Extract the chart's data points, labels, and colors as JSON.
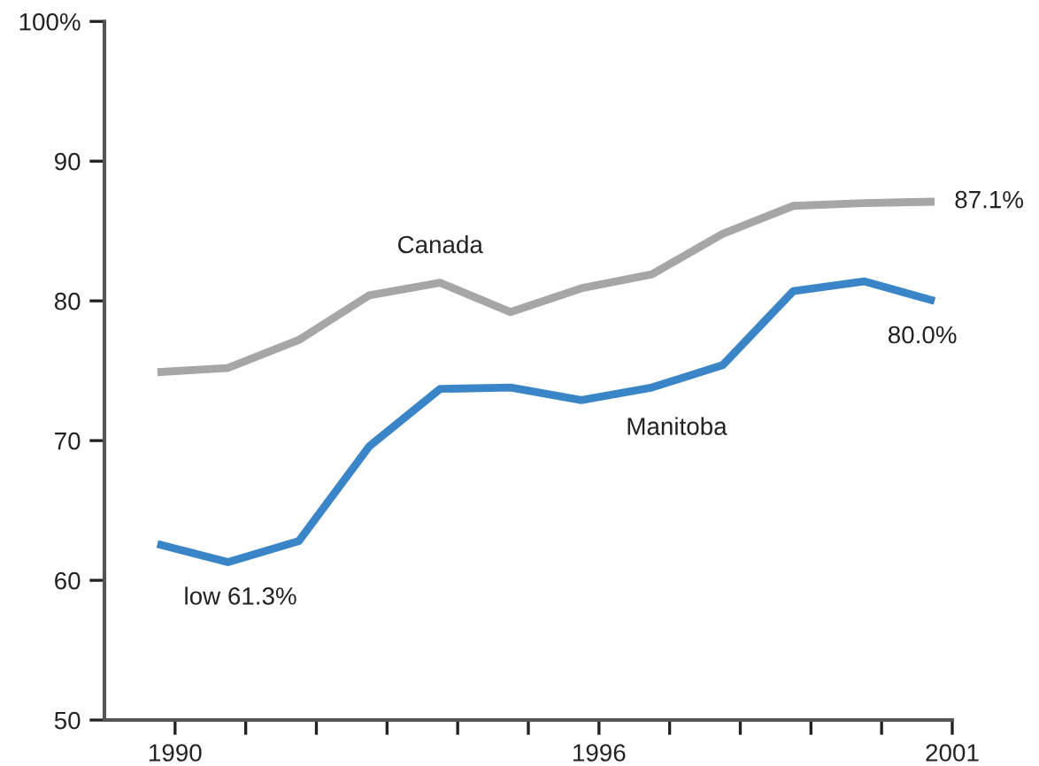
{
  "chart_data": {
    "type": "line",
    "x": [
      1989.75,
      1990.75,
      1991.75,
      1992.75,
      1993.75,
      1994.75,
      1995.75,
      1996.75,
      1997.75,
      1998.75,
      1999.75,
      2000.75
    ],
    "series": [
      {
        "name": "Canada",
        "color": "#a6a6a6",
        "values": [
          74.9,
          75.2,
          77.2,
          80.4,
          81.3,
          79.2,
          80.9,
          81.9,
          84.8,
          86.8,
          87.0,
          87.1
        ],
        "value_labels": [
          null,
          null,
          null,
          null,
          null,
          null,
          null,
          null,
          null,
          null,
          null,
          "87.1%"
        ]
      },
      {
        "name": "Manitoba",
        "color": "#3a85c8",
        "values": [
          62.6,
          61.3,
          62.8,
          69.6,
          73.7,
          73.8,
          72.9,
          73.8,
          75.4,
          80.7,
          81.4,
          80.0
        ],
        "value_labels": [
          null,
          "low 61.3%",
          null,
          null,
          null,
          null,
          null,
          null,
          null,
          null,
          null,
          "80.0%"
        ]
      }
    ],
    "xlim": [
      1989,
      2001
    ],
    "ylim": [
      50,
      100
    ],
    "xticks": [
      1990,
      {
        "value": 1991,
        "label": null
      },
      {
        "value": 1992,
        "label": null
      },
      {
        "value": 1993,
        "label": null
      },
      {
        "value": 1994,
        "label": null
      },
      {
        "value": 1995,
        "label": null
      },
      1996,
      {
        "value": 1997,
        "label": null
      },
      {
        "value": 1998,
        "label": null
      },
      {
        "value": 1999,
        "label": null
      },
      {
        "value": 2000,
        "label": null
      },
      2001
    ],
    "yticks": [
      50,
      60,
      70,
      80,
      90,
      {
        "value": 100,
        "label": "100%"
      }
    ],
    "grid": false,
    "legend": false,
    "marker": "none",
    "line_style": "solid"
  }
}
